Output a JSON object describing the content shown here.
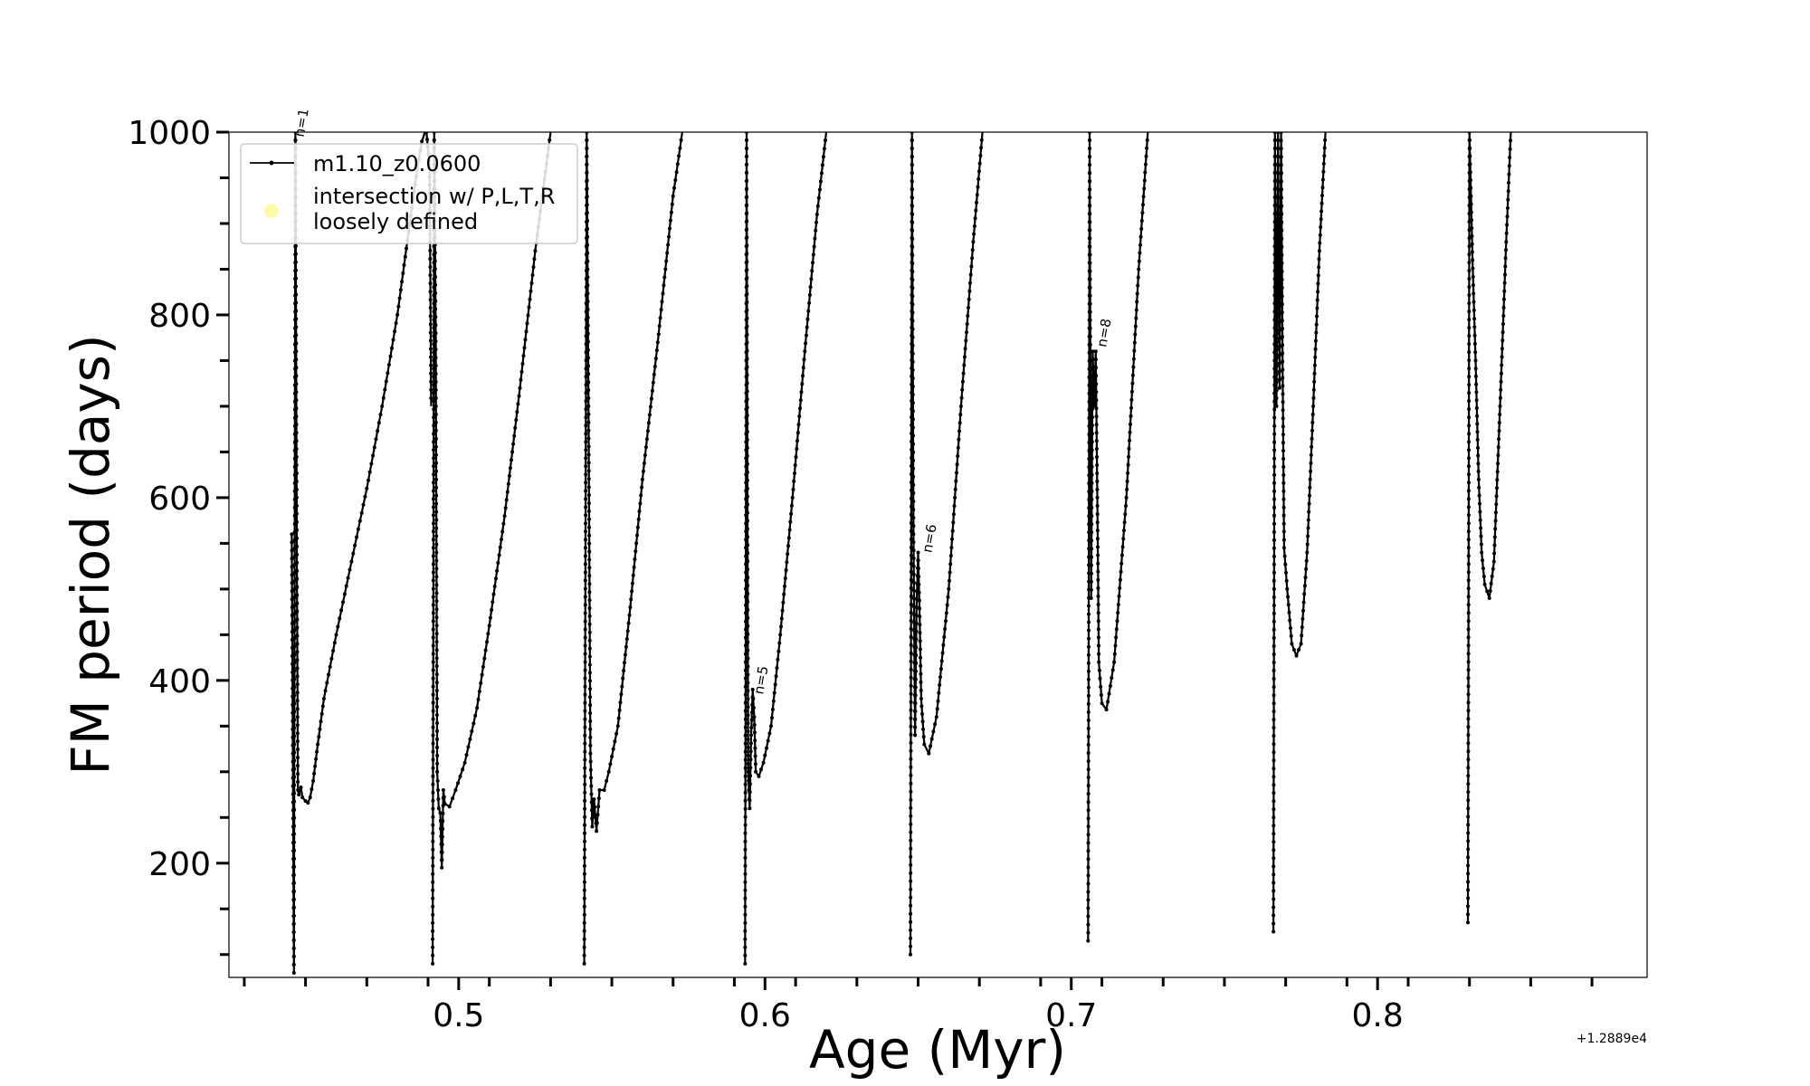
{
  "chart_data": {
    "type": "line",
    "xlabel": "Age (Myr)",
    "ylabel": "FM period (days)",
    "offset_label": "+1.2889e4",
    "xlim": [
      0.425,
      0.888
    ],
    "ylim": [
      75,
      1000
    ],
    "xticks": [
      0.5,
      0.6,
      0.7,
      0.8
    ],
    "xtick_labels": [
      "0.5",
      "0.6",
      "0.7",
      "0.8"
    ],
    "yticks": [
      200,
      400,
      600,
      800,
      1000
    ],
    "ytick_labels": [
      "200",
      "400",
      "600",
      "800",
      "1000"
    ],
    "legend": {
      "position": "upper-left",
      "entries": [
        {
          "label": "m1.10_z0.0600",
          "marker": "line-with-dots",
          "color": "#000000"
        },
        {
          "label": "intersection w/ P,L,T,R\nloosely defined",
          "marker": "circle",
          "color": "#fffaaa"
        }
      ]
    },
    "annotations": [
      {
        "text": "n=1",
        "x": 0.447,
        "y": 1000
      },
      {
        "text": "n=5",
        "x": 0.597,
        "y": 390
      },
      {
        "text": "n=6",
        "x": 0.652,
        "y": 545
      },
      {
        "text": "n=8",
        "x": 0.709,
        "y": 770
      }
    ],
    "series": [
      {
        "color": "#000000",
        "cycles": [
          {
            "x": [
              0.4455,
              0.4462,
              0.4467,
              0.4472,
              0.4475,
              0.4478,
              0.4485,
              0.449,
              0.45,
              0.4508,
              0.4515,
              0.4525,
              0.454,
              0.456,
              0.46,
              0.465,
              0.47,
              0.475,
              0.48,
              0.484,
              0.4865,
              0.488,
              0.489,
              0.4895,
              0.4905,
              0.491
            ],
            "y": [
              560,
              80,
              1000,
              520,
              280,
              275,
              283,
              272,
              268,
              266,
              272,
              290,
              330,
              380,
              450,
              530,
              610,
              700,
              800,
              900,
              960,
              990,
              1000,
              1000,
              960,
              700
            ]
          },
          {
            "x": [
              0.4915,
              0.492,
              0.4925,
              0.493,
              0.4935,
              0.494,
              0.4945,
              0.495,
              0.4955,
              0.497,
              0.499,
              0.502,
              0.506,
              0.51,
              0.515,
              0.52,
              0.525,
              0.53
            ],
            "y": [
              90,
              1000,
              780,
              300,
              260,
              255,
              195,
              280,
              265,
              262,
              280,
              310,
              370,
              460,
              580,
              720,
              870,
              1000
            ]
          },
          {
            "x": [
              0.541,
              0.5418,
              0.5424,
              0.543,
              0.5436,
              0.5442,
              0.545,
              0.546,
              0.5475,
              0.549,
              0.552,
              0.556,
              0.56,
              0.565,
              0.57,
              0.573
            ],
            "y": [
              90,
              1000,
              700,
              320,
              240,
              270,
              235,
              280,
              280,
              300,
              350,
              480,
              620,
              770,
              930,
              1000
            ]
          },
          {
            "x": [
              0.5935,
              0.594,
              0.5945,
              0.595,
              0.5955,
              0.596,
              0.5965,
              0.597,
              0.598,
              0.5995,
              0.602,
              0.605,
              0.609,
              0.613,
              0.617,
              0.62
            ],
            "y": [
              90,
              1000,
              300,
              260,
              340,
              390,
              360,
              300,
              295,
              310,
              350,
              450,
              600,
              760,
              910,
              1000
            ]
          },
          {
            "x": [
              0.6475,
              0.648,
              0.6485,
              0.649,
              0.6495,
              0.65,
              0.6505,
              0.651,
              0.652,
              0.6535,
              0.656,
              0.66,
              0.664,
              0.668,
              0.671
            ],
            "y": [
              100,
              1000,
              560,
              340,
              480,
              540,
              470,
              380,
              330,
              320,
              360,
              500,
              700,
              880,
              1000
            ]
          },
          {
            "x": [
              0.7055,
              0.706,
              0.7065,
              0.707,
              0.7075,
              0.708,
              0.7085,
              0.709,
              0.71,
              0.7115,
              0.714,
              0.718,
              0.722,
              0.725
            ],
            "y": [
              115,
              1000,
              490,
              760,
              700,
              760,
              600,
              420,
              375,
              368,
              420,
              600,
              850,
              1000
            ]
          },
          {
            "x": [
              0.766,
              0.7665,
              0.767,
              0.7675,
              0.768,
              0.7685,
              0.769,
              0.7695,
              0.7705,
              0.772,
              0.7735,
              0.775,
              0.777,
              0.779,
              0.781,
              0.783
            ],
            "y": [
              125,
              1000,
              700,
              1000,
              720,
              1000,
              740,
              545,
              500,
              440,
              427,
              440,
              540,
              700,
              870,
              1000
            ]
          },
          {
            "x": [
              0.8295,
              0.83,
              0.8305,
              0.831,
              0.832,
              0.833,
              0.834,
              0.835,
              0.8365,
              0.838,
              0.84,
              0.842,
              0.8435
            ],
            "y": [
              135,
              1000,
              930,
              860,
              750,
              620,
              540,
              505,
              490,
              530,
              700,
              880,
              1000
            ]
          }
        ]
      }
    ]
  }
}
